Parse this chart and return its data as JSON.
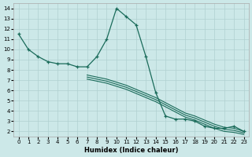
{
  "xlabel": "Humidex (Indice chaleur)",
  "background_color": "#cce8e8",
  "grid_color": "#b0d0d0",
  "line_color": "#1a6b5a",
  "xlim": [
    -0.5,
    23.5
  ],
  "ylim": [
    1.5,
    14.5
  ],
  "xticks": [
    0,
    1,
    2,
    3,
    4,
    5,
    6,
    7,
    8,
    9,
    10,
    11,
    12,
    13,
    14,
    15,
    16,
    17,
    18,
    19,
    20,
    21,
    22,
    23
  ],
  "yticks": [
    2,
    3,
    4,
    5,
    6,
    7,
    8,
    9,
    10,
    11,
    12,
    13,
    14
  ],
  "main_x": [
    0,
    1,
    2,
    3,
    4,
    5,
    6,
    7,
    8,
    9,
    10,
    11,
    12,
    13,
    14,
    15,
    16,
    17,
    18,
    19,
    20,
    21,
    22,
    23
  ],
  "main_y": [
    11.5,
    10.0,
    9.3,
    8.8,
    8.6,
    8.6,
    8.3,
    8.3,
    9.3,
    11.0,
    14.0,
    13.2,
    12.4,
    9.3,
    5.8,
    3.5,
    3.2,
    3.2,
    3.0,
    2.5,
    2.3,
    2.3,
    2.5,
    2.0
  ],
  "line2_x": [
    7,
    8,
    9,
    10,
    11,
    12,
    13,
    14,
    15,
    16,
    17,
    18,
    19,
    20,
    21,
    22,
    23
  ],
  "line2_y": [
    7.5,
    7.3,
    7.1,
    6.8,
    6.5,
    6.1,
    5.7,
    5.3,
    4.8,
    4.3,
    3.8,
    3.5,
    3.1,
    2.7,
    2.4,
    2.3,
    2.0
  ],
  "line3_x": [
    7,
    8,
    9,
    10,
    11,
    12,
    13,
    14,
    15,
    16,
    17,
    18,
    19,
    20,
    21,
    22,
    23
  ],
  "line3_y": [
    7.3,
    7.1,
    6.9,
    6.6,
    6.3,
    5.9,
    5.5,
    5.1,
    4.6,
    4.1,
    3.6,
    3.3,
    2.9,
    2.5,
    2.2,
    2.1,
    1.85
  ],
  "line4_x": [
    7,
    8,
    9,
    10,
    11,
    12,
    13,
    14,
    15,
    16,
    17,
    18,
    19,
    20,
    21,
    22,
    23
  ],
  "line4_y": [
    7.1,
    6.9,
    6.7,
    6.4,
    6.1,
    5.7,
    5.3,
    4.9,
    4.4,
    3.9,
    3.4,
    3.1,
    2.7,
    2.3,
    2.0,
    1.9,
    1.7
  ]
}
